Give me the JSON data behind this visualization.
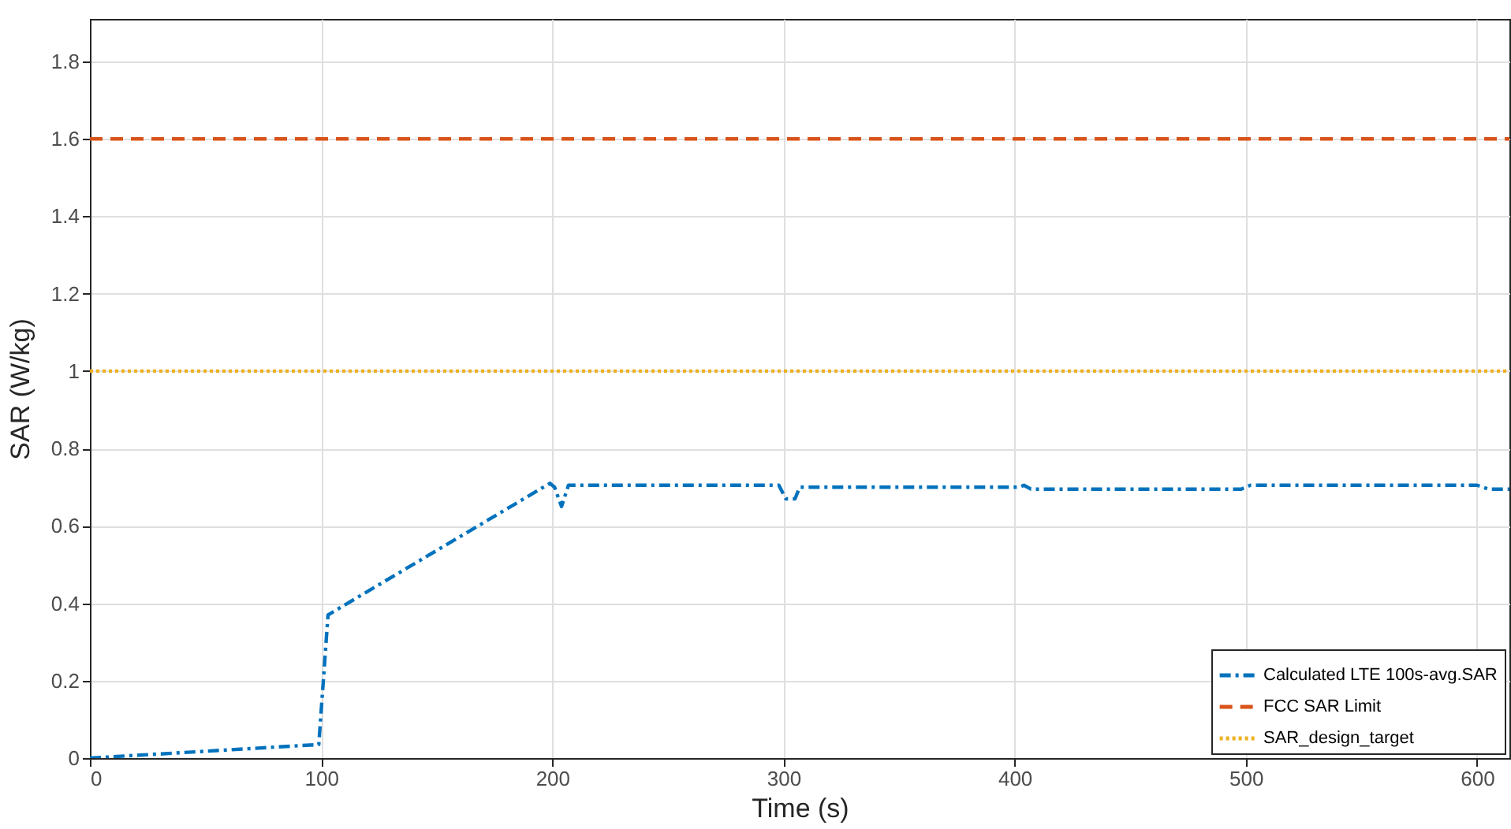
{
  "chart_data": {
    "type": "line",
    "xlabel": "Time (s)",
    "ylabel": "SAR (W/kg)",
    "series": [
      {
        "name": "Calculated LTE 100s-avg.SAR",
        "color": "#0072bd",
        "line_style": "dashdot",
        "x": [
          0,
          99,
          103,
          199,
          201,
          204,
          207,
          298,
          301,
          305,
          307,
          402,
          404,
          407,
          498,
          502,
          600,
          605,
          614
        ],
        "values": [
          0,
          0.035,
          0.37,
          0.71,
          0.7,
          0.65,
          0.705,
          0.705,
          0.67,
          0.67,
          0.7,
          0.7,
          0.705,
          0.695,
          0.695,
          0.705,
          0.705,
          0.695,
          0.695
        ]
      },
      {
        "name": "FCC SAR Limit",
        "color": "#d95319",
        "line_style": "dashed",
        "x": [
          0,
          614
        ],
        "values": [
          1.6,
          1.6
        ]
      },
      {
        "name": "SAR_design_target",
        "color": "#edb120",
        "line_style": "dotted",
        "x": [
          0,
          614
        ],
        "values": [
          1,
          1
        ]
      }
    ],
    "xlim": [
      0,
      614
    ],
    "xticks": [
      0,
      100,
      200,
      300,
      400,
      500,
      600
    ],
    "ylim": [
      0,
      1.91
    ],
    "yticks": [
      0,
      0.2,
      0.4,
      0.6,
      0.8,
      1,
      1.2,
      1.4,
      1.6,
      1.8
    ],
    "grid": true,
    "legend": "bottom right"
  }
}
